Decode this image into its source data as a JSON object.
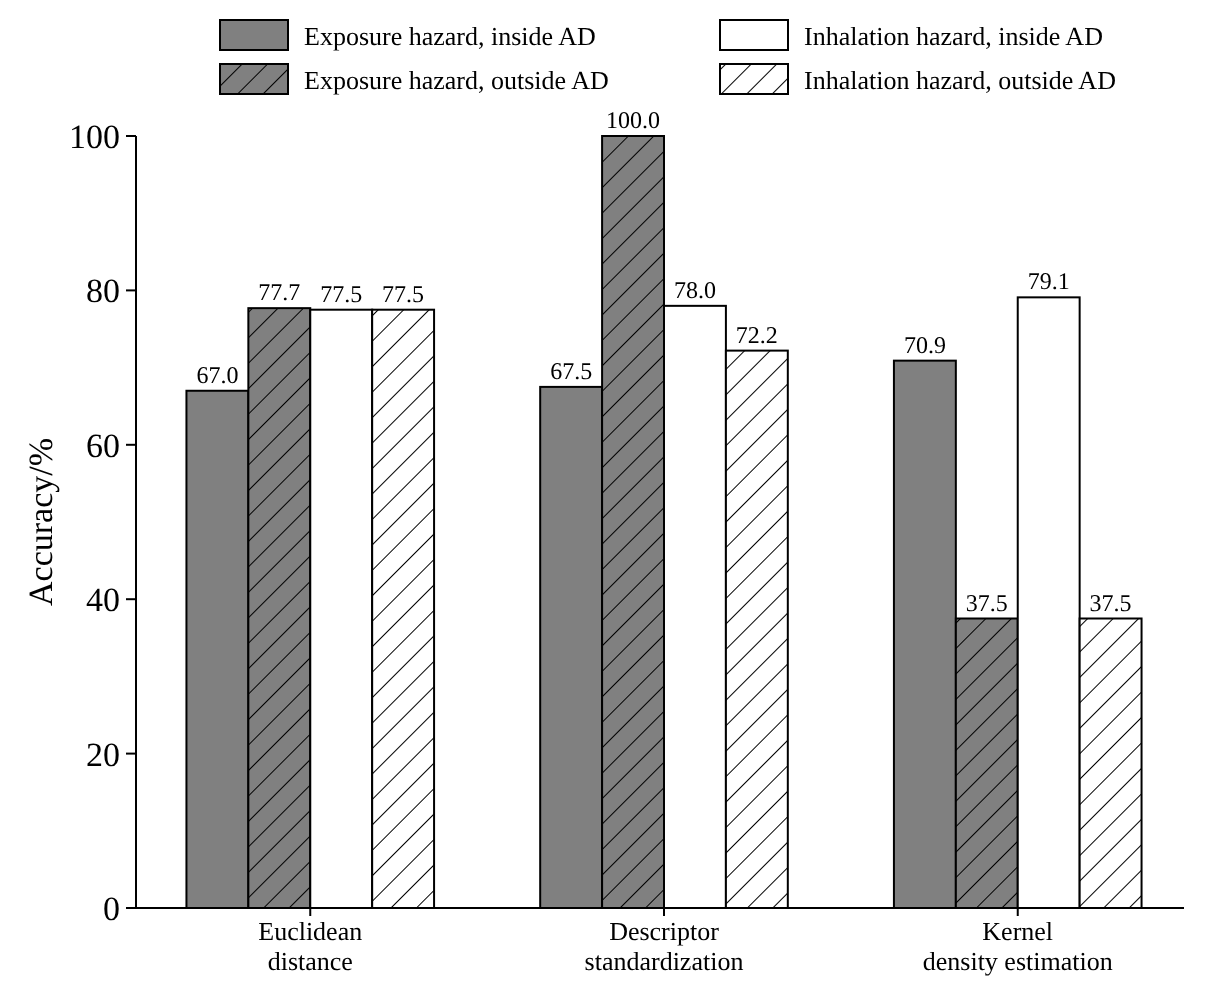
{
  "chart_data": {
    "type": "bar",
    "ylabel": "Accuracy/%",
    "categories": [
      "Euclidean\ndistance",
      "Descriptor\nstandardization",
      "Kernel\ndensity estimation"
    ],
    "ylim": [
      0,
      100
    ],
    "yticks": [
      0,
      20,
      40,
      60,
      80,
      100
    ],
    "legend": "top",
    "grid": false,
    "series": [
      {
        "name": "Exposure hazard, inside AD",
        "color": "#808080",
        "values": [
          67.0,
          67.5,
          70.9
        ],
        "value_labels": [
          "67.0",
          "67.5",
          "70.9"
        ]
      },
      {
        "name": "Exposure hazard, outside AD",
        "color": "#808080",
        "values": [
          77.7,
          100.0,
          37.5
        ],
        "value_labels": [
          "77.7",
          "100.0",
          "37.5"
        ]
      },
      {
        "name": "Inhalation hazard, inside AD",
        "color": "#ffffff",
        "values": [
          77.5,
          78.0,
          79.1
        ],
        "value_labels": [
          "77.5",
          "78.0",
          "79.1"
        ]
      },
      {
        "name": "Inhalation hazard, outside AD",
        "color": "#ffffff",
        "values": [
          77.5,
          72.2,
          37.5
        ],
        "value_labels": [
          "77.5",
          "72.2",
          "37.5"
        ]
      }
    ]
  }
}
